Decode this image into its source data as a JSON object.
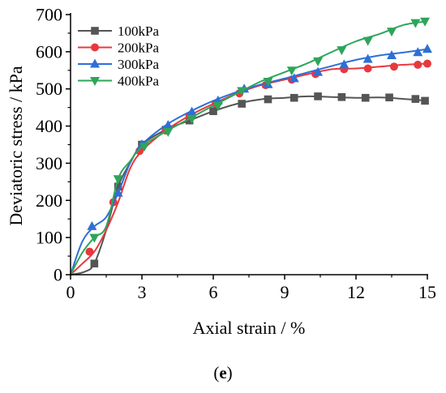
{
  "caption": {
    "open": "(",
    "label": "e",
    "close": ")"
  },
  "chart_data": {
    "type": "line",
    "xlabel": "Axial strain / %",
    "ylabel": "Deviatoric stress / kPa",
    "xlim": [
      0,
      15
    ],
    "ylim": [
      0,
      700
    ],
    "xticks": [
      0,
      3,
      6,
      9,
      12,
      15
    ],
    "yticks": [
      0,
      100,
      200,
      300,
      400,
      500,
      600,
      700
    ],
    "grid": false,
    "legend_position": "top-left",
    "series": [
      {
        "name": "100kPa",
        "color": "#555555",
        "marker": "square",
        "x": [
          0,
          0.6,
          1.0,
          1.5,
          2.0,
          2.5,
          3.0,
          4.0,
          5.0,
          6.0,
          7.0,
          8.0,
          9.0,
          10.0,
          11.0,
          12.0,
          13.0,
          14.0,
          15.0
        ],
        "y": [
          0,
          8,
          30,
          120,
          237,
          300,
          350,
          390,
          415,
          440,
          460,
          472,
          476,
          480,
          478,
          476,
          477,
          473,
          468
        ],
        "markers_x": [
          1.0,
          2.0,
          3.0,
          4.0,
          5.0,
          6.0,
          7.2,
          8.3,
          9.4,
          10.4,
          11.4,
          12.4,
          13.4,
          14.5,
          14.9
        ],
        "markers_y": [
          30,
          237,
          350,
          390,
          415,
          440,
          460,
          472,
          476,
          480,
          478,
          476,
          477,
          473,
          468
        ]
      },
      {
        "name": "200kPa",
        "color": "#e8383d",
        "marker": "circle",
        "x": [
          0,
          0.5,
          1.0,
          1.5,
          2.0,
          2.5,
          3.0,
          4.0,
          5.0,
          6.0,
          7.0,
          8.0,
          9.0,
          10.0,
          11.0,
          12.0,
          13.0,
          14.0,
          15.0
        ],
        "y": [
          0,
          30,
          62,
          120,
          195,
          285,
          333,
          388,
          428,
          460,
          488,
          510,
          525,
          540,
          553,
          555,
          560,
          565,
          568
        ],
        "markers_x": [
          0.8,
          1.8,
          2.9,
          4.0,
          5.0,
          6.1,
          7.1,
          8.2,
          9.3,
          10.3,
          11.5,
          12.5,
          13.6,
          14.6,
          15.0
        ],
        "markers_y": [
          62,
          195,
          333,
          388,
          428,
          460,
          488,
          510,
          525,
          540,
          553,
          555,
          560,
          565,
          568
        ]
      },
      {
        "name": "300kPa",
        "color": "#2e6fd6",
        "marker": "triangle-up",
        "x": [
          0,
          0.5,
          1.0,
          1.5,
          2.0,
          2.5,
          3.0,
          4.0,
          5.0,
          6.0,
          7.0,
          8.0,
          9.0,
          10.0,
          11.0,
          12.0,
          13.0,
          14.0,
          15.0
        ],
        "y": [
          0,
          90,
          130,
          155,
          220,
          300,
          350,
          402,
          438,
          468,
          492,
          512,
          528,
          545,
          562,
          578,
          590,
          598,
          607
        ],
        "markers_x": [
          0.9,
          2.0,
          3.0,
          4.1,
          5.1,
          6.2,
          7.3,
          8.3,
          9.4,
          10.4,
          11.5,
          12.5,
          13.5,
          14.6,
          15.0
        ],
        "markers_y": [
          130,
          220,
          350,
          402,
          438,
          468,
          500,
          512,
          528,
          545,
          565,
          580,
          590,
          598,
          607
        ]
      },
      {
        "name": "400kPa",
        "color": "#2ea55a",
        "marker": "triangle-down",
        "x": [
          0,
          0.5,
          1.0,
          1.5,
          2.0,
          2.5,
          3.0,
          4.0,
          5.0,
          6.0,
          7.0,
          8.0,
          9.0,
          10.0,
          11.0,
          12.0,
          13.0,
          14.0,
          15.0
        ],
        "y": [
          0,
          60,
          100,
          130,
          258,
          305,
          345,
          385,
          420,
          455,
          488,
          520,
          545,
          570,
          600,
          628,
          648,
          672,
          682
        ],
        "markers_x": [
          1.0,
          2.0,
          3.1,
          4.1,
          5.1,
          6.2,
          7.2,
          8.3,
          9.3,
          10.4,
          11.4,
          12.5,
          13.5,
          14.5,
          14.9
        ],
        "markers_y": [
          100,
          258,
          345,
          385,
          420,
          455,
          495,
          520,
          550,
          575,
          605,
          630,
          655,
          678,
          682
        ]
      }
    ]
  }
}
